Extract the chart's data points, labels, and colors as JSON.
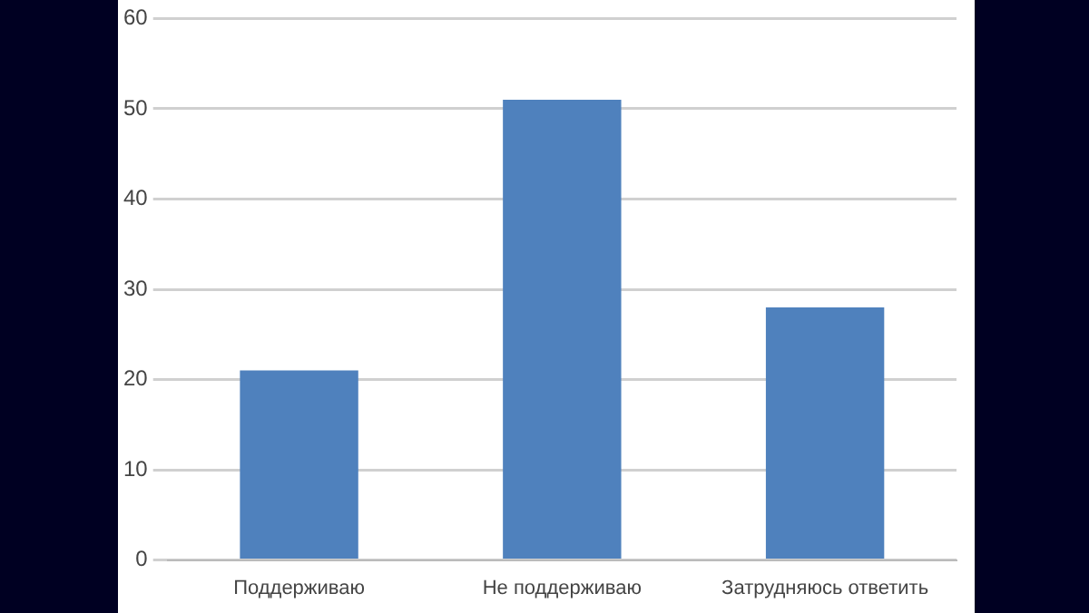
{
  "chart_data": {
    "type": "bar",
    "categories": [
      "Поддерживаю",
      "Не поддерживаю",
      "Затрудняюсь ответить"
    ],
    "values": [
      21,
      51,
      28
    ],
    "color": "#4f81bd",
    "ylim": [
      0,
      60
    ],
    "yticks": [
      0,
      10,
      20,
      30,
      40,
      50,
      60
    ],
    "grid": "y",
    "legend": false
  }
}
